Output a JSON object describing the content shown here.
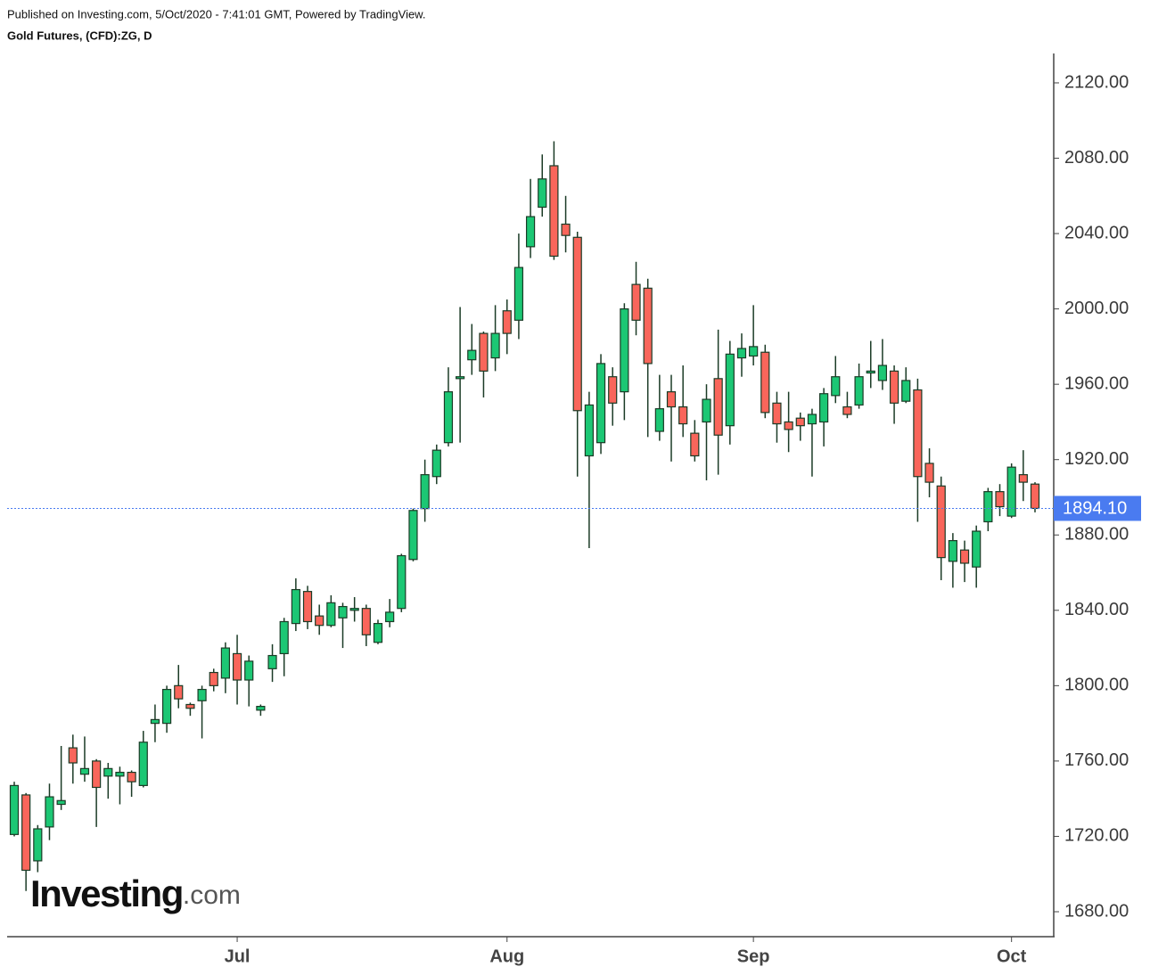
{
  "chart_data": {
    "type": "candlestick",
    "header": "Published on Investing.com, 5/Oct/2020 - 7:41:01 GMT, Powered by TradingView.",
    "title": "Gold Futures, (CFD):ZG, D",
    "watermark": {
      "brand": "Investing",
      "suffix": ".com"
    },
    "categories": [
      null,
      null,
      null,
      null,
      null,
      null,
      null,
      null,
      null,
      null,
      null,
      null,
      null,
      null,
      null,
      null,
      null,
      null,
      null,
      "Jul",
      null,
      null,
      null,
      null,
      null,
      null,
      null,
      null,
      null,
      null,
      null,
      null,
      null,
      null,
      null,
      null,
      null,
      null,
      null,
      null,
      null,
      null,
      "Aug",
      null,
      null,
      null,
      null,
      null,
      null,
      null,
      null,
      null,
      null,
      null,
      null,
      null,
      null,
      null,
      null,
      null,
      null,
      null,
      null,
      "Sep",
      null,
      null,
      null,
      null,
      null,
      null,
      null,
      null,
      null,
      null,
      null,
      null,
      null,
      null,
      null,
      null,
      null,
      null,
      null,
      null,
      null,
      "Oct",
      null,
      null
    ],
    "series": [
      {
        "up_color": "#1cc774",
        "down_color": "#f9665b",
        "wick_color": "#1b3b26",
        "open": [
          1721,
          1742,
          1707,
          1725,
          1737,
          1767,
          1753,
          1760,
          1752,
          1752,
          1754,
          1747,
          1780,
          1780,
          1800,
          1790,
          1792,
          1807,
          1804,
          1817,
          1803,
          1787,
          1809,
          1817,
          1833,
          1850,
          1837,
          1832,
          1836,
          1840,
          1841,
          1823,
          1834,
          1841,
          1867,
          1894,
          1911,
          1929,
          1963,
          1973,
          1987,
          1974,
          1999,
          1994,
          2033,
          2054,
          2076,
          2045,
          2038,
          1922,
          1929,
          1964,
          1956,
          2013,
          2011,
          1935,
          1956,
          1948,
          1934,
          1940,
          1963,
          1938,
          1974,
          1975,
          1977,
          1950,
          1940,
          1942,
          1939,
          1940,
          1954,
          1948,
          1949,
          1966,
          1962,
          1967,
          1951,
          1957,
          1918,
          1906,
          1866,
          1872,
          1863,
          1887,
          1903,
          1890,
          1912,
          1907
        ],
        "high": [
          1749,
          1743,
          1726,
          1748,
          1768,
          1774,
          1773,
          1761,
          1759,
          1757,
          1755,
          1776,
          1790,
          1800,
          1811,
          1791,
          1800,
          1809,
          1823,
          1827,
          1816,
          1790,
          1822,
          1836,
          1857,
          1853,
          1843,
          1848,
          1844,
          1847,
          1843,
          1835,
          1846,
          1870,
          1894,
          1920,
          1928,
          1969,
          2001,
          1992,
          1988,
          2002,
          2005,
          2040,
          2069,
          2082,
          2089,
          2060,
          2041,
          1956,
          1976,
          1969,
          2003,
          2025,
          2016,
          1965,
          1965,
          1970,
          1941,
          1960,
          1989,
          1983,
          1987,
          2002,
          1981,
          1956,
          1956,
          1945,
          1947,
          1958,
          1975,
          1956,
          1971,
          1983,
          1984,
          1970,
          1969,
          1963,
          1926,
          1911,
          1881,
          1877,
          1885,
          1905,
          1907,
          1918,
          1925,
          1908
        ],
        "low": [
          1720,
          1691,
          1701,
          1718,
          1734,
          1748,
          1749,
          1725,
          1740,
          1737,
          1741,
          1746,
          1770,
          1775,
          1788,
          1784,
          1772,
          1797,
          1796,
          1790,
          1789,
          1784,
          1802,
          1805,
          1829,
          1830,
          1827,
          1831,
          1820,
          1834,
          1821,
          1822,
          1831,
          1839,
          1866,
          1887,
          1907,
          1927,
          1929,
          1965,
          1953,
          1967,
          1976,
          1984,
          2027,
          2049,
          2026,
          2030,
          1911,
          1873,
          1923,
          1938,
          1941,
          1986,
          1932,
          1930,
          1919,
          1932,
          1919,
          1909,
          1912,
          1928,
          1964,
          1970,
          1942,
          1929,
          1924,
          1930,
          1911,
          1927,
          1950,
          1942,
          1947,
          1958,
          1957,
          1939,
          1950,
          1887,
          1900,
          1856,
          1852,
          1855,
          1852,
          1882,
          1890,
          1889,
          1898,
          1892
        ],
        "close": [
          1747,
          1702,
          1724,
          1741,
          1739,
          1759,
          1756,
          1746,
          1756,
          1754,
          1749,
          1770,
          1782,
          1798,
          1793,
          1788,
          1798,
          1800,
          1820,
          1803,
          1813,
          1789,
          1816,
          1834,
          1851,
          1834,
          1832,
          1844,
          1842,
          1841,
          1827,
          1833,
          1839,
          1869,
          1893,
          1912,
          1925,
          1956,
          1964,
          1978,
          1967,
          1987,
          1987,
          2022,
          2049,
          2069,
          2028,
          2039,
          1946,
          1949,
          1971,
          1950,
          2000,
          1994,
          1971,
          1947,
          1948,
          1939,
          1922,
          1952,
          1933,
          1976,
          1979,
          1980,
          1945,
          1939,
          1936,
          1938,
          1944,
          1955,
          1964,
          1944,
          1964,
          1967,
          1970,
          1950,
          1962,
          1911,
          1908,
          1868,
          1877,
          1865,
          1882,
          1903,
          1895,
          1916,
          1908,
          1894.1
        ]
      }
    ],
    "last_price": {
      "value": 1894.1,
      "label": "1894.10",
      "color": "#4a7bf0"
    },
    "ylim": [
      1666.75,
      2135.6
    ],
    "yticks": [
      {
        "value": 1680,
        "label": "1680.00"
      },
      {
        "value": 1720,
        "label": "1720.00"
      },
      {
        "value": 1760,
        "label": "1760.00"
      },
      {
        "value": 1800,
        "label": "1800.00"
      },
      {
        "value": 1840,
        "label": "1840.00"
      },
      {
        "value": 1880,
        "label": "1880.00"
      },
      {
        "value": 1920,
        "label": "1920.00"
      },
      {
        "value": 1960,
        "label": "1960.00"
      },
      {
        "value": 2000,
        "label": "2000.00"
      },
      {
        "value": 2040,
        "label": "2040.00"
      },
      {
        "value": 2080,
        "label": "2080.00"
      },
      {
        "value": 2120,
        "label": "2120.00"
      }
    ]
  }
}
